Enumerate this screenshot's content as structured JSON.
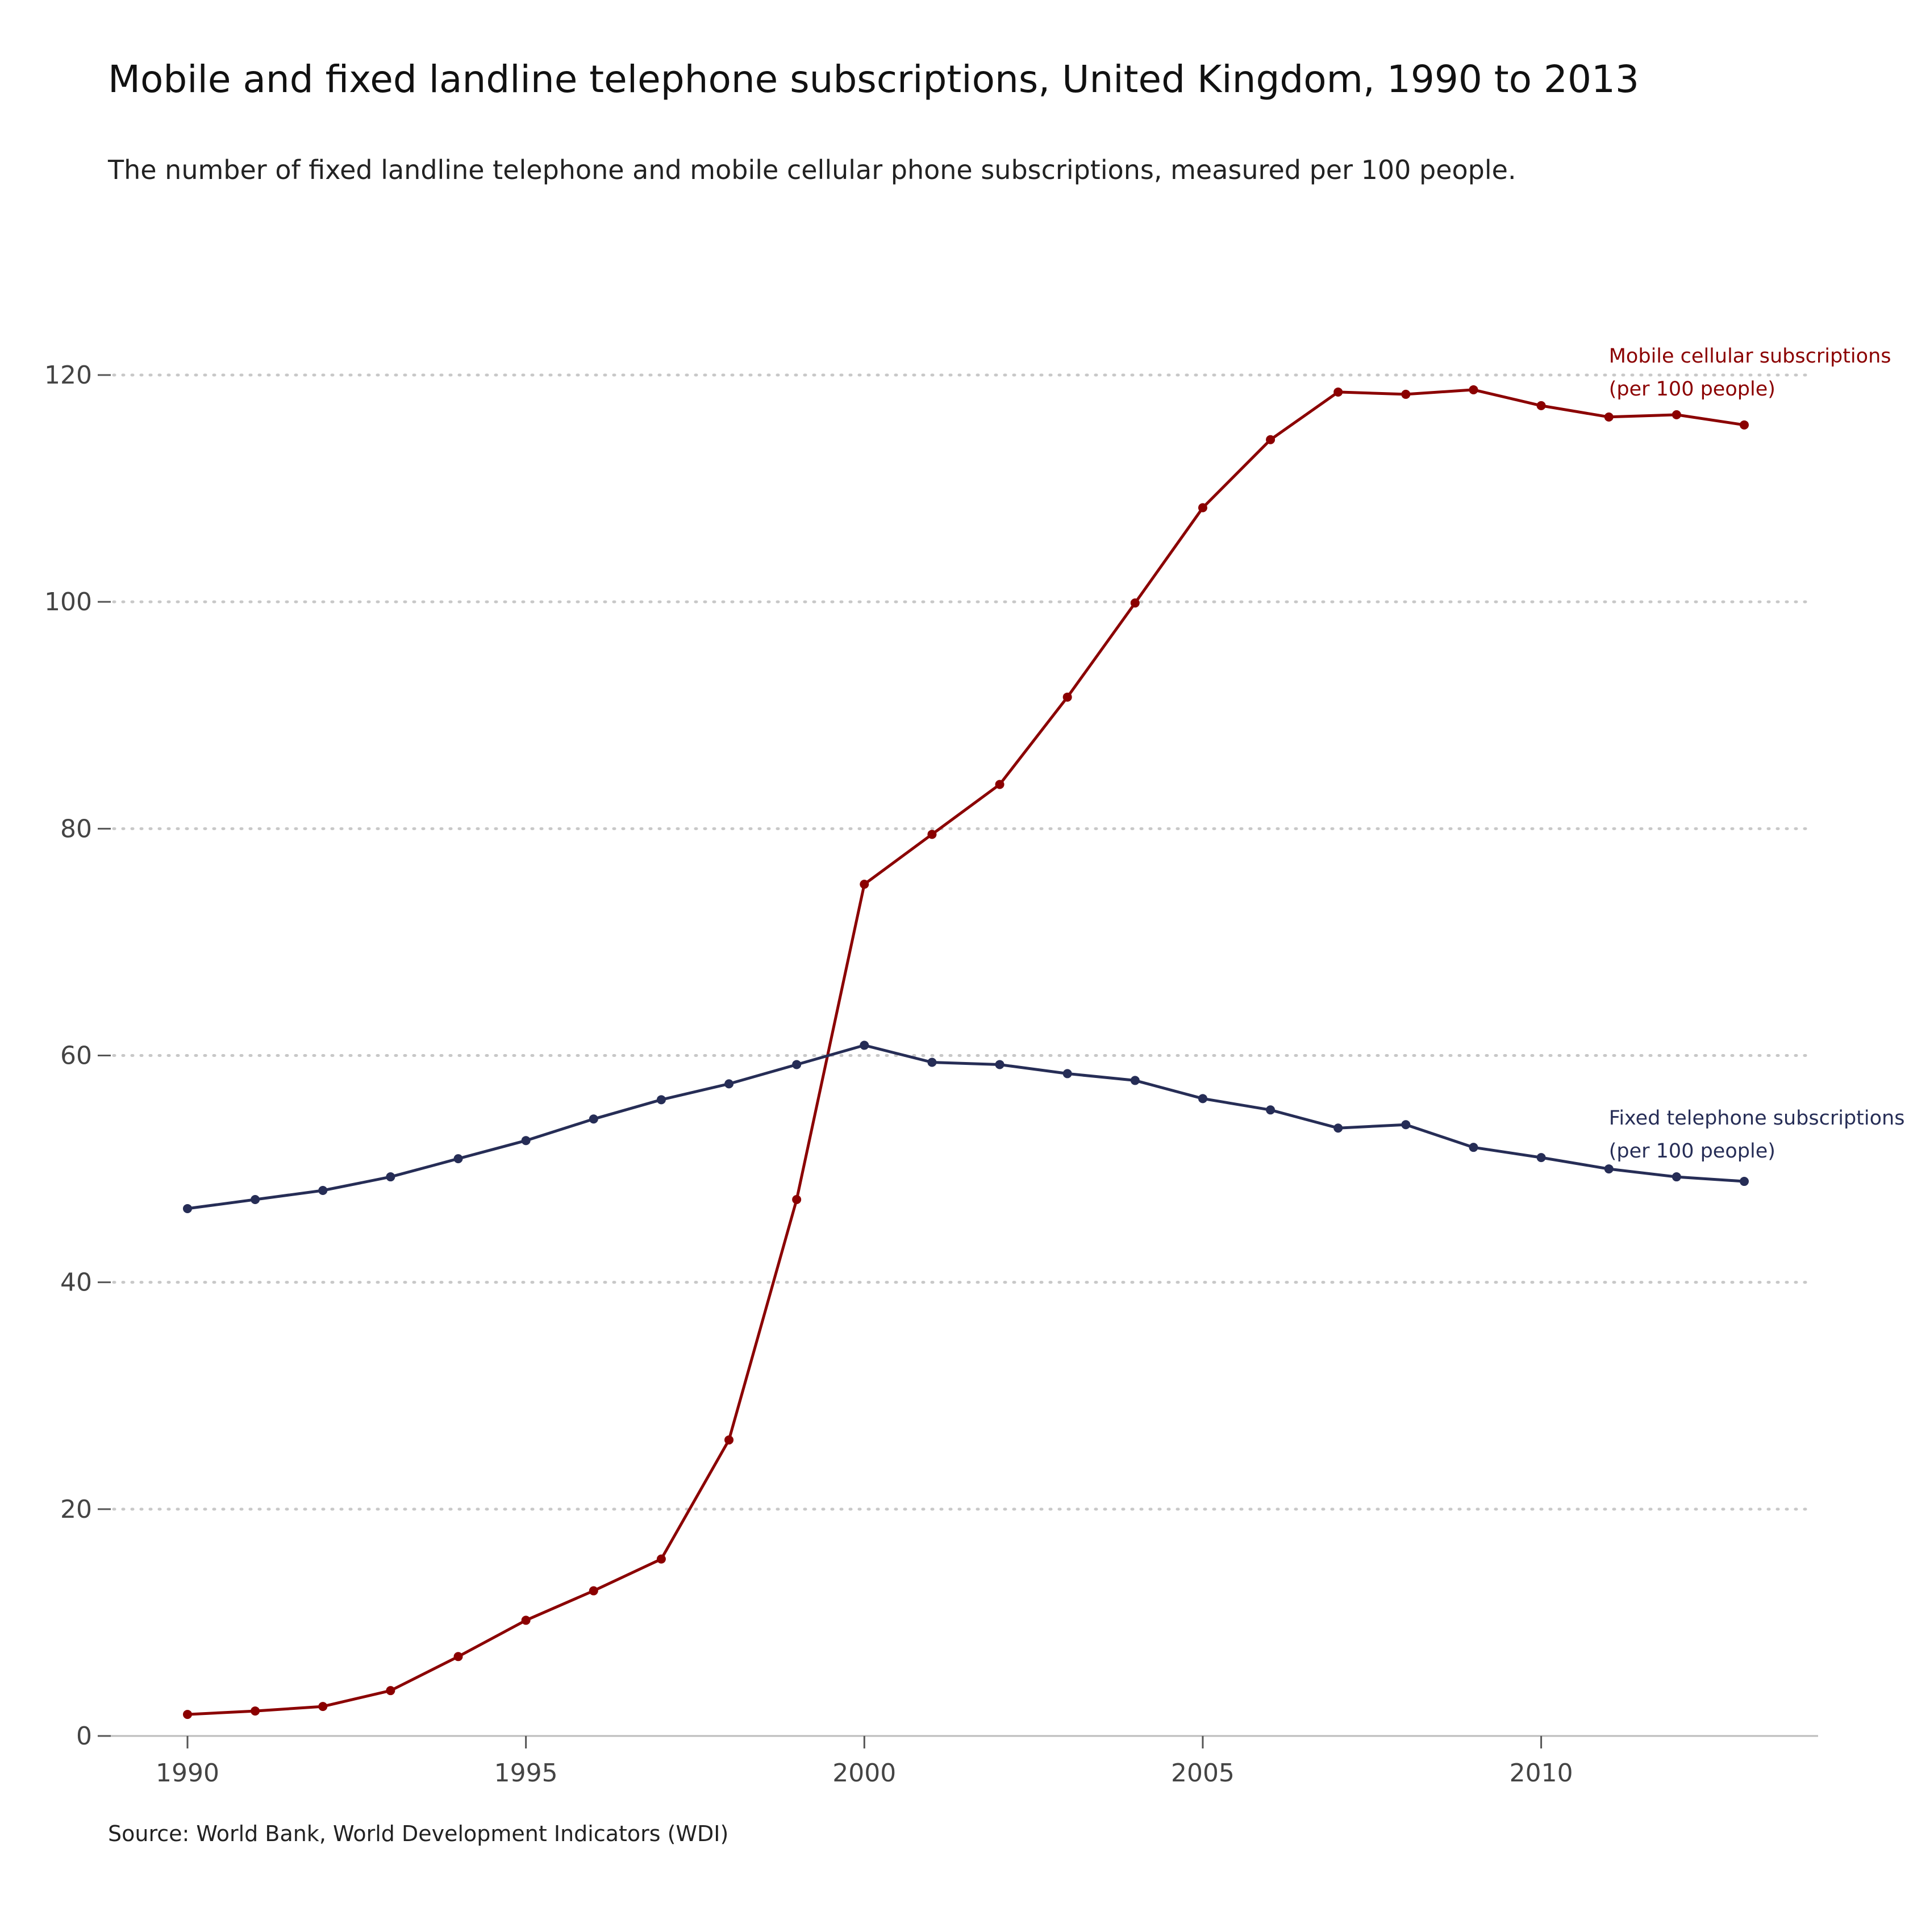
{
  "title": "Mobile and fixed landline telephone subscriptions, United Kingdom, 1990 to 2013",
  "subtitle": "The number of fixed landline telephone and mobile cellular phone subscriptions, measured per 100 people.",
  "source": "Source: World Bank, World Development Indicators (WDI)",
  "chart_data": {
    "type": "line",
    "title": "Mobile and fixed landline telephone subscriptions, United Kingdom, 1990 to 2013",
    "xlim": [
      1990,
      2013
    ],
    "ylim": [
      0,
      120
    ],
    "x_ticks": [
      1990,
      1995,
      2000,
      2005,
      2010
    ],
    "y_ticks": [
      0,
      20,
      40,
      60,
      80,
      100,
      120
    ],
    "grid": "horizontal dotted",
    "x": [
      1990,
      1991,
      1992,
      1993,
      1994,
      1995,
      1996,
      1997,
      1998,
      1999,
      2000,
      2001,
      2002,
      2003,
      2004,
      2005,
      2006,
      2007,
      2008,
      2009,
      2010,
      2011,
      2012,
      2013
    ],
    "series": [
      {
        "name": "Mobile cellular subscriptions (per 100 people)",
        "label_lines": [
          "Mobile cellular subscriptions",
          "(per 100 people)"
        ],
        "color": "#8b0000",
        "values": [
          1.9,
          2.2,
          2.6,
          4.0,
          7.0,
          10.2,
          12.8,
          15.6,
          26.1,
          47.3,
          75.1,
          79.5,
          83.9,
          91.6,
          99.9,
          108.3,
          114.3,
          118.5,
          118.3,
          118.7,
          117.3,
          116.3,
          116.5,
          115.6
        ]
      },
      {
        "name": "Fixed telephone subscriptions (per 100 people)",
        "label_lines": [
          "Fixed telephone subscriptions",
          "(per 100 people)"
        ],
        "color": "#262d56",
        "values": [
          46.5,
          47.3,
          48.1,
          49.3,
          50.9,
          52.5,
          54.4,
          56.1,
          57.5,
          59.2,
          60.9,
          59.4,
          59.2,
          58.4,
          57.8,
          56.2,
          55.2,
          53.6,
          53.9,
          51.9,
          51.0,
          50.0,
          49.3,
          48.9
        ]
      }
    ]
  }
}
